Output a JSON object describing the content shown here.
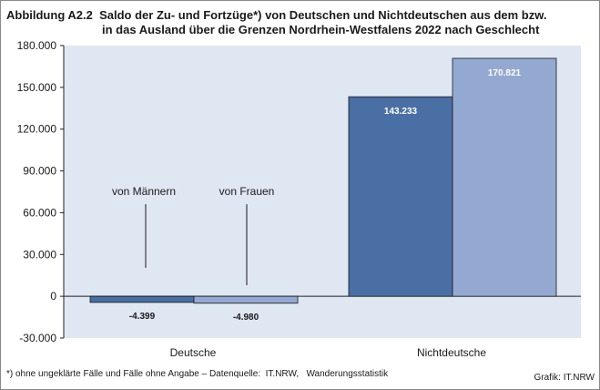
{
  "title": {
    "number": "Abbildung A2.2",
    "line1": "Saldo der Zu- und Fortzüge*) von Deutschen und Nichtdeutschen aus dem bzw.",
    "line2": "in das Ausland über die Grenzen Nordrhein-Westfalens 2022 nach Geschlecht"
  },
  "footnote": "*) ohne ungeklärte Fälle und Fälle ohne Angabe – Datenquelle:  IT.NRW,   Wanderungsstatistik",
  "credit": "Grafik: IT.NRW",
  "colors": {
    "plot_bg": "#dfe7f3",
    "men": "#4a6fa5",
    "women": "#94a9d1",
    "label_light": "#ffffff",
    "label_dark": "#1a1a1a"
  },
  "chart_data": {
    "type": "bar",
    "categories": [
      "Deutsche",
      "Nichtdeutsche"
    ],
    "series": [
      {
        "name": "von Männern",
        "values": [
          -4399,
          143233
        ],
        "labels": [
          "-4.399",
          "143.233"
        ]
      },
      {
        "name": "von Frauen",
        "values": [
          -4980,
          170821
        ],
        "labels": [
          "-4.980",
          "170.821"
        ]
      }
    ],
    "ylim": [
      -30000,
      180000
    ],
    "yticks": [
      -30000,
      0,
      30000,
      60000,
      90000,
      120000,
      150000,
      180000
    ],
    "ytick_labels": [
      "-30.000",
      "0",
      "30.000",
      "60.000",
      "90.000",
      "120.000",
      "150.000",
      "180.000"
    ],
    "grid": false,
    "annotations": [
      {
        "text": "von Männern",
        "category": "Deutsche",
        "series": 0
      },
      {
        "text": "von Frauen",
        "category": "Deutsche",
        "series": 1
      }
    ]
  }
}
